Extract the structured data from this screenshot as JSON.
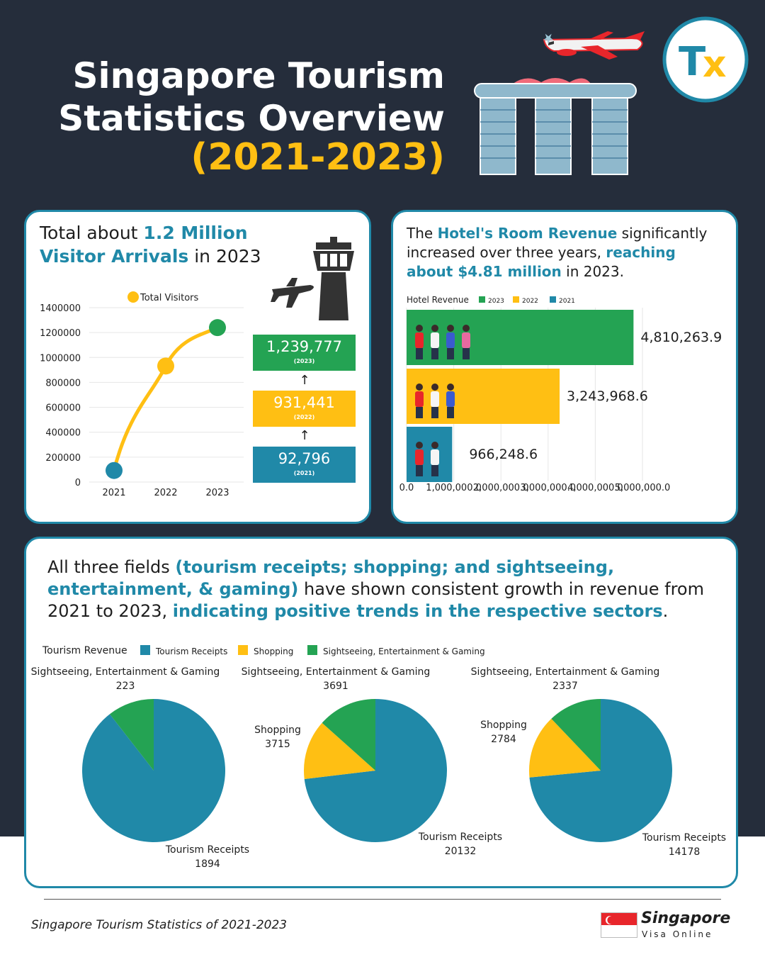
{
  "title": {
    "line1": "Singapore Tourism",
    "line2": "Statistics Overview",
    "line3": "(2021-2023)"
  },
  "logo": {
    "text": "Tx",
    "colors": {
      "t": "#2089a8",
      "x": "#ffbf13"
    }
  },
  "colors": {
    "background": "#252d3b",
    "teal": "#2089a8",
    "yellow": "#ffbf13",
    "green": "#24a353"
  },
  "visitors": {
    "head_pre": "Total about ",
    "head_hl1": "1.2 Million",
    "head_hl2": "Visitor Arrivals",
    "head_post": " in 2023",
    "legend": "Total Visitors",
    "boxes": [
      {
        "value": "1,239,777",
        "year": "(2023)",
        "color": "#24a353"
      },
      {
        "value": "931,441",
        "year": "(2022)",
        "color": "#ffbf13"
      },
      {
        "value": "92,796",
        "year": "(2021)",
        "color": "#2089a8"
      }
    ],
    "arrow": "↑"
  },
  "hotel": {
    "head_pre": "The ",
    "head_hl1": "Hotel's Room Revenue",
    "head_mid": " significantly increased over three years, ",
    "head_hl2": "reaching about $4.81 million",
    "head_post": " in 2023.",
    "legend_title": "Hotel Revenue"
  },
  "tourism": {
    "head_pre": "All three fields ",
    "head_hl1": "(tourism receipts; shopping; and sightseeing, entertainment, & gaming)",
    "head_mid": " have shown consistent growth in revenue from 2021 to 2023, ",
    "head_hl2": "indicating positive trends in the respective sectors",
    "head_post": ".",
    "legend_title": "Tourism Revenue"
  },
  "footer": {
    "note": "Singapore Tourism Statistics of 2021-2023",
    "brand": "Singapore",
    "brand_sub": "Visa Online"
  },
  "chart_data": [
    {
      "type": "line",
      "categories": [
        "2021",
        "2022",
        "2023"
      ],
      "series": [
        {
          "name": "Total Visitors",
          "values": [
            92796,
            931441,
            1239777
          ],
          "color": "#ffbf13"
        }
      ],
      "ylim": [
        0,
        1400000
      ],
      "yticks": [
        0,
        200000,
        400000,
        600000,
        800000,
        1000000,
        1200000,
        1400000
      ],
      "point_colors": [
        "#2089a8",
        "#ffbf13",
        "#24a353"
      ],
      "grid": true,
      "legend": "top"
    },
    {
      "type": "bar",
      "orientation": "horizontal",
      "title": "Hotel Revenue",
      "categories": [
        "2023",
        "2022",
        "2021"
      ],
      "values": [
        4810263.9,
        3243968.6,
        966248.6
      ],
      "value_labels": [
        "4,810,263.9",
        "3,243,968.6",
        "966,248.6"
      ],
      "colors": [
        "#24a353",
        "#ffbf13",
        "#2089a8"
      ],
      "xlim": [
        0,
        5000000
      ],
      "xticks": [
        "0.0",
        "1,000,000.0",
        "2,000,000.0",
        "3,000,000.0",
        "4,000,000.0",
        "5,000,000.0"
      ],
      "legend": [
        "2023",
        "2022",
        "2021"
      ],
      "grid": true
    },
    {
      "type": "pie",
      "title": "Tourism Revenue",
      "legend": [
        "Tourism Receipts",
        "Shopping",
        "Sightseeing, Entertainment & Gaming"
      ],
      "colors": [
        "#2089a8",
        "#ffbf13",
        "#24a353"
      ],
      "pies": [
        {
          "slices": [
            {
              "label": "Tourism Receipts",
              "value": 1894
            },
            {
              "label": "Shopping",
              "value": 0
            },
            {
              "label": "Sightseeing, Entertainment & Gaming",
              "value": 223
            }
          ]
        },
        {
          "slices": [
            {
              "label": "Tourism Receipts",
              "value": 20132
            },
            {
              "label": "Shopping",
              "value": 3715
            },
            {
              "label": "Sightseeing, Entertainment & Gaming",
              "value": 3691
            }
          ]
        },
        {
          "slices": [
            {
              "label": "Tourism Receipts",
              "value": 14178
            },
            {
              "label": "Shopping",
              "value": 2784
            },
            {
              "label": "Sightseeing, Entertainment & Gaming",
              "value": 2337
            }
          ]
        }
      ]
    }
  ]
}
